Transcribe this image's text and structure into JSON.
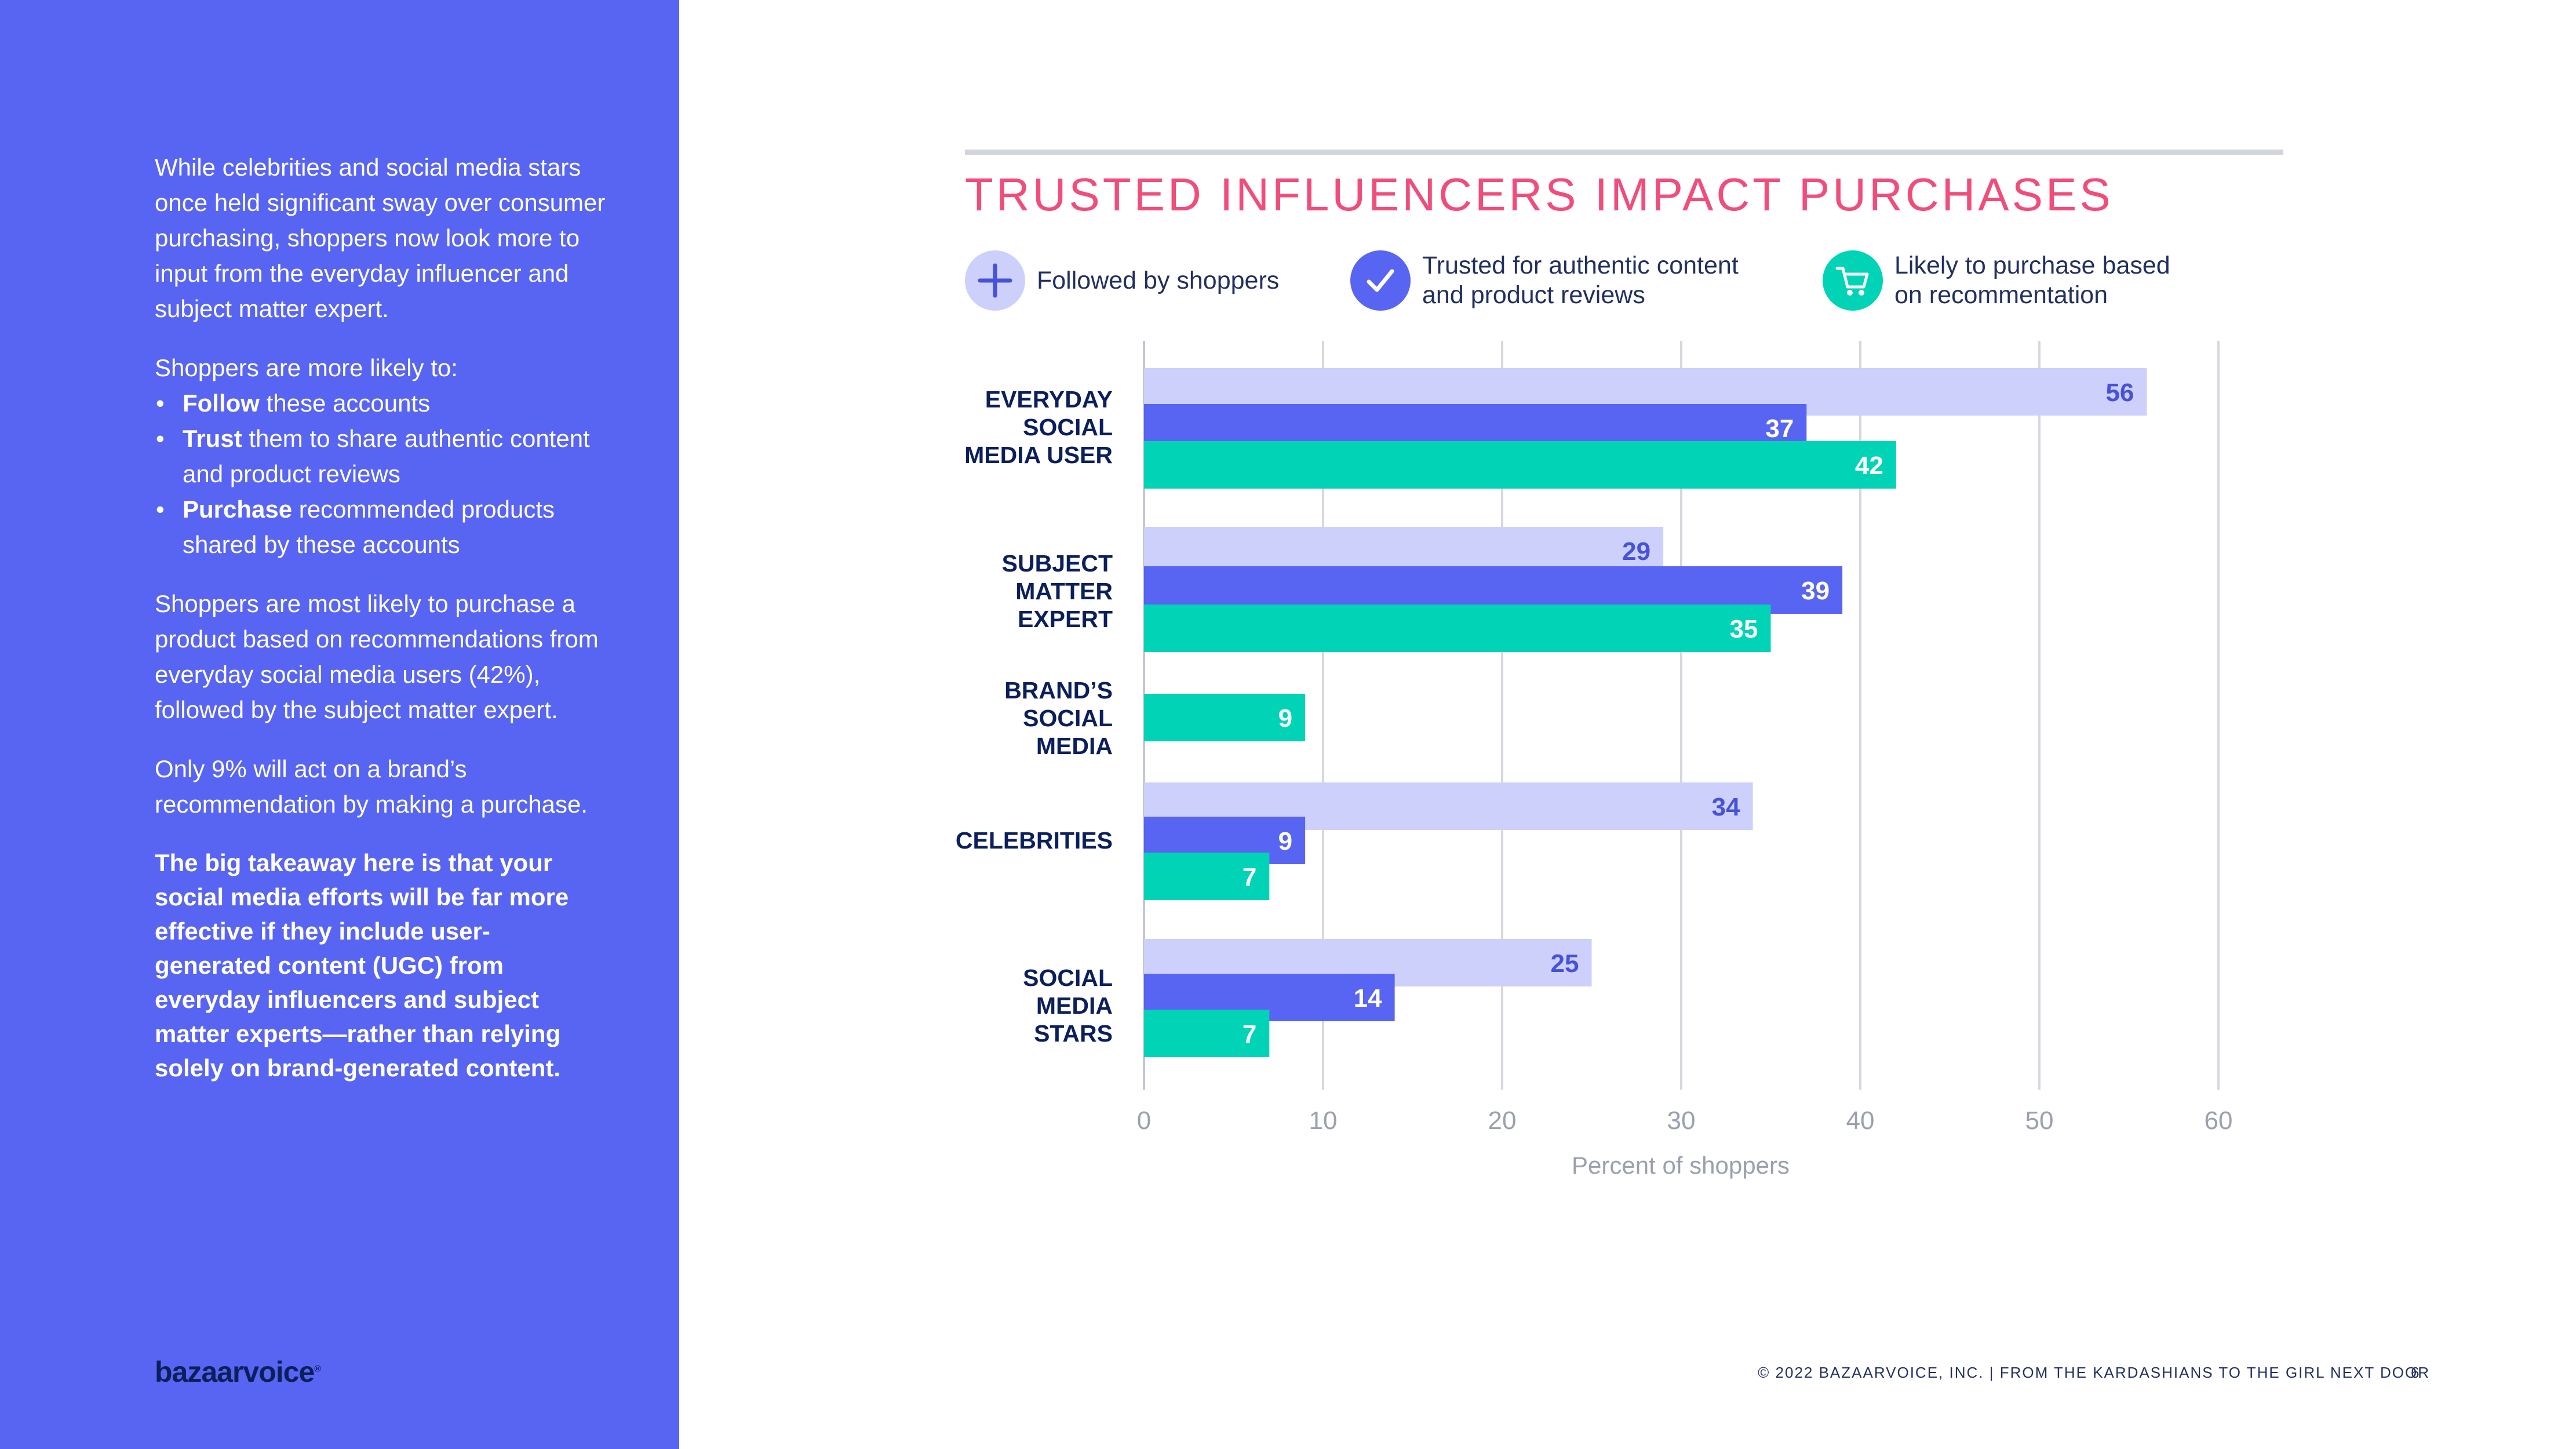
{
  "sidebar": {
    "intro": "While celebrities and social media stars once held significant sway over consumer purchasing, shoppers now look more to input from the everyday influencer and subject matter expert.",
    "likely_intro": "Shoppers are more likely to:",
    "bullets": [
      {
        "bold": "Follow",
        "rest": " these accounts"
      },
      {
        "bold": "Trust",
        "rest": " them to share authentic content and product reviews"
      },
      {
        "bold": "Purchase",
        "rest": " recommended products shared by these accounts"
      }
    ],
    "para3": "Shoppers are most likely to purchase a product based on recommendations from everyday social media users (42%), followed by the subject matter expert.",
    "para4": "Only 9% will act on a brand’s recommendation by making a purchase.",
    "takeaway": "The big takeaway here is that your social media efforts will be far more effective if they include user-generated content (UGC) from everyday influencers and subject matter experts—rather than relying solely on brand-generated content.",
    "logo": "bazaarvoice",
    "logo_mark": "®"
  },
  "legend": [
    {
      "label": "Followed by shoppers",
      "icon": "plus-icon",
      "color": "#ccd0fb"
    },
    {
      "label": "Trusted for authentic content\nand product reviews",
      "icon": "checkmark-icon",
      "color": "#5865f2"
    },
    {
      "label": "Likely to purchase based\non recommentation",
      "icon": "shopping-cart-icon",
      "color": "#00d3b6"
    }
  ],
  "footer": {
    "text": "© 2022 BAZAARVOICE, INC.  |  FROM THE KARDASHIANS TO THE GIRL NEXT DOOR",
    "page": "6"
  },
  "chart_data": {
    "type": "bar",
    "orientation": "horizontal",
    "title": "TRUSTED INFLUENCERS IMPACT PURCHASES",
    "xlabel": "Percent of shoppers",
    "ylabel": "",
    "xlim": [
      0,
      60
    ],
    "xticks": [
      0,
      10,
      20,
      30,
      40,
      50,
      60
    ],
    "grid": true,
    "categories": [
      "EVERYDAY\nSOCIAL\nMEDIA USER",
      "SUBJECT\nMATTER\nEXPERT",
      "BRAND’S\nSOCIAL\nMEDIA",
      "CELEBRITIES",
      "SOCIAL\nMEDIA\nSTARS"
    ],
    "series": [
      {
        "name": "Followed by shoppers",
        "color": "#ccd0fb",
        "label_color": "#4652d8",
        "values": [
          56,
          29,
          null,
          34,
          25
        ]
      },
      {
        "name": "Trusted for authentic content and product reviews",
        "color": "#5865f2",
        "label_color": "#ffffff",
        "values": [
          37,
          39,
          null,
          9,
          14
        ]
      },
      {
        "name": "Likely to purchase based on recommentation",
        "color": "#00d3b6",
        "label_color": "#ffffff",
        "values": [
          42,
          35,
          9,
          7,
          7
        ]
      }
    ]
  }
}
